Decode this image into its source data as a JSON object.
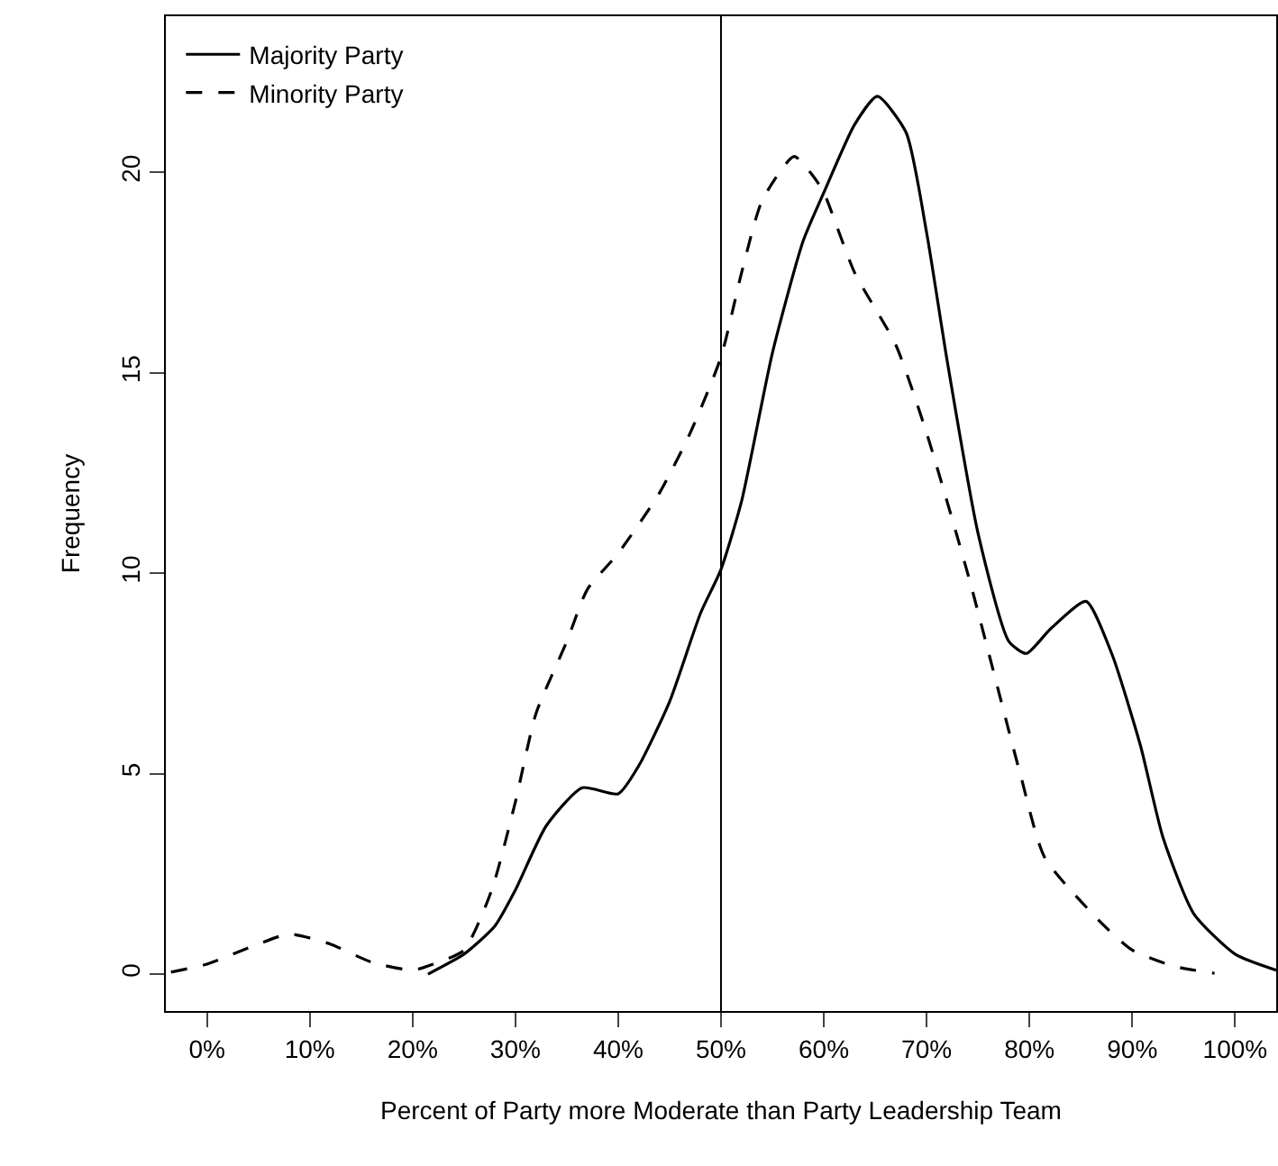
{
  "chart_data": {
    "type": "line",
    "xlabel": "Percent of Party more Moderate than Party Leadership Team",
    "ylabel": "Frequency",
    "xlim": [
      -4,
      104
    ],
    "ylim": [
      -0.92,
      23.9
    ],
    "xticks": [
      {
        "value": 0,
        "label": "0%"
      },
      {
        "value": 10,
        "label": "10%"
      },
      {
        "value": 20,
        "label": "20%"
      },
      {
        "value": 30,
        "label": "30%"
      },
      {
        "value": 40,
        "label": "40%"
      },
      {
        "value": 50,
        "label": "50%"
      },
      {
        "value": 60,
        "label": "60%"
      },
      {
        "value": 70,
        "label": "70%"
      },
      {
        "value": 80,
        "label": "80%"
      },
      {
        "value": 90,
        "label": "90%"
      },
      {
        "value": 100,
        "label": "100%"
      }
    ],
    "yticks": [
      0,
      5,
      10,
      15,
      20
    ],
    "grid": false,
    "legend": "top left",
    "marker": "none",
    "ref_lines": [
      {
        "axis": "x",
        "value": 50,
        "color": "#000000"
      }
    ],
    "series": [
      {
        "name": "Majority Party",
        "color": "#000000",
        "line_style": "solid",
        "x": [
          21.5,
          25,
          28,
          30,
          33,
          36.5,
          40,
          42,
          45,
          48,
          50,
          52,
          55,
          58,
          60,
          63,
          65.2,
          68,
          70,
          72,
          75,
          78,
          79.7,
          82,
          85.5,
          88,
          90.8,
          93,
          96,
          100,
          104
        ],
        "values": [
          0,
          0.5,
          1.2,
          2.1,
          3.7,
          4.65,
          4.5,
          5.2,
          6.8,
          9.0,
          10.1,
          11.8,
          15.5,
          18.3,
          19.5,
          21.2,
          21.9,
          21.0,
          18.5,
          15.3,
          11,
          8.3,
          8.0,
          8.6,
          9.3,
          8.0,
          5.7,
          3.4,
          1.5,
          0.5,
          0.1
        ]
      },
      {
        "name": "Minority Party",
        "color": "#000000",
        "line_style": "dashed",
        "x": [
          -3.5,
          0,
          5,
          8,
          12,
          16,
          20,
          22,
          25,
          27.7,
          30,
          32,
          35,
          37,
          40,
          44,
          47,
          50,
          52,
          54,
          57.1,
          59,
          60,
          63,
          67,
          70,
          74.1,
          79.1,
          81.5,
          87.3,
          90,
          94,
          98
        ],
        "values": [
          0.05,
          0.25,
          0.75,
          1.0,
          0.75,
          0.3,
          0.1,
          0.25,
          0.6,
          2.1,
          4.3,
          6.5,
          8.3,
          9.6,
          10.5,
          12,
          13.5,
          15.4,
          17.5,
          19.3,
          20.4,
          19.9,
          19.5,
          17.5,
          15.7,
          13.5,
          9.9,
          5.0,
          2.9,
          1.2,
          0.6,
          0.2,
          0.02
        ]
      }
    ]
  }
}
